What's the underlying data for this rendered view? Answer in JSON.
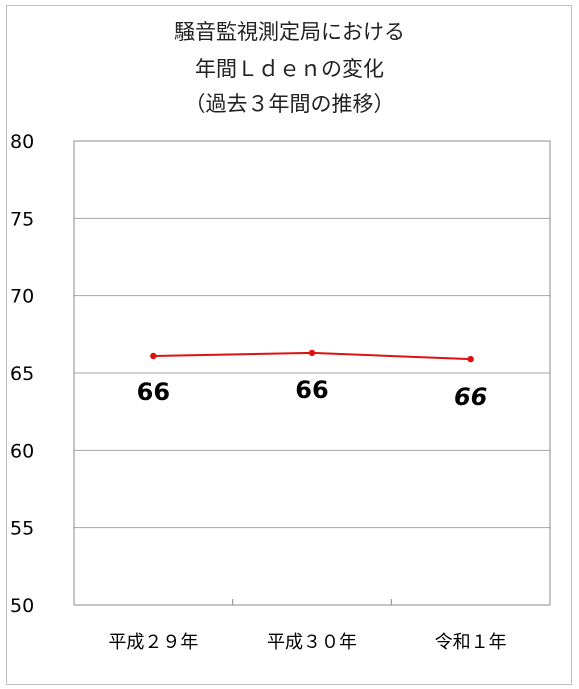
{
  "chart_data": {
    "type": "line",
    "title": [
      "騒音監視測定局における",
      "年間Ｌｄｅｎの変化",
      "（過去３年間の推移）"
    ],
    "categories": [
      "平成２９年",
      "平成３０年",
      "令和１年"
    ],
    "series": [
      {
        "values": [
          66.1,
          66.3,
          65.9
        ],
        "color": "#e01010"
      }
    ],
    "data_labels": [
      "66",
      "66",
      "66"
    ],
    "ylim": [
      50,
      80
    ],
    "yticks": [
      50,
      55,
      60,
      65,
      70,
      75,
      80
    ],
    "xlabel": "",
    "ylabel": "",
    "grid": true,
    "legend": "none"
  }
}
